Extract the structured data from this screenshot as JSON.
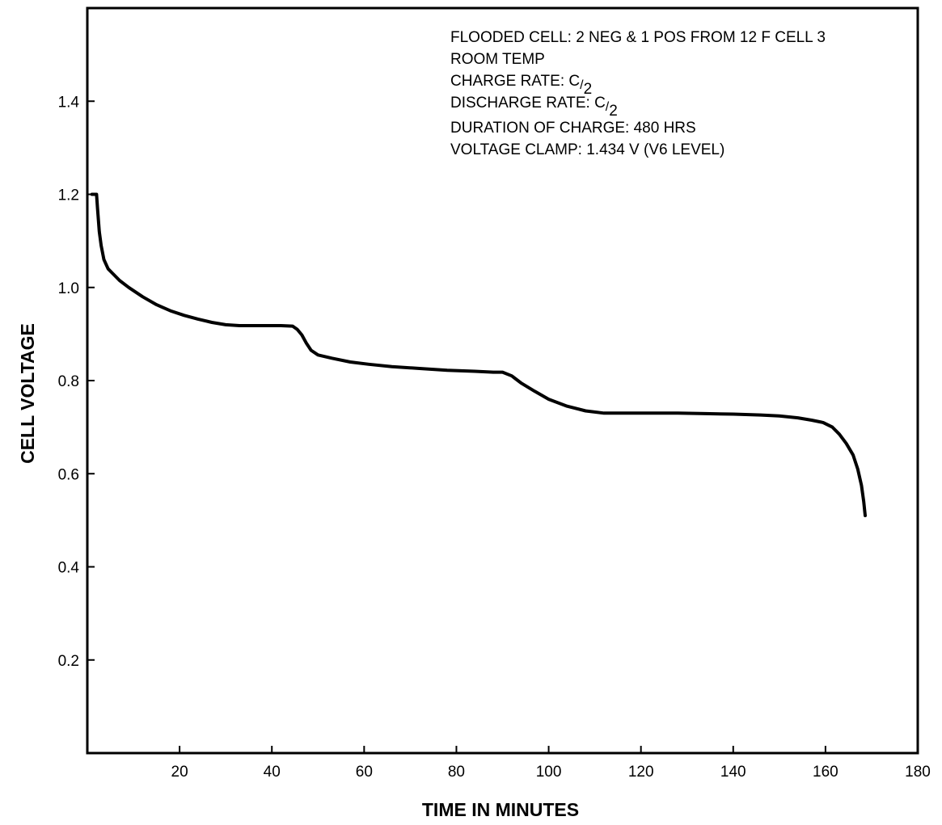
{
  "chart_data": {
    "type": "line",
    "title": "",
    "xlabel": "TIME IN MINUTES",
    "ylabel": "CELL VOLTAGE",
    "xlim": [
      0,
      180
    ],
    "ylim": [
      0,
      1.6
    ],
    "x_ticks": [
      20,
      40,
      60,
      80,
      100,
      120,
      140,
      160,
      180
    ],
    "y_ticks": [
      0.2,
      0.4,
      0.6,
      0.8,
      1.0,
      1.2,
      1.4
    ],
    "x_tick_labels": [
      "20",
      "40",
      "60",
      "80",
      "100",
      "120",
      "140",
      "160",
      "180"
    ],
    "y_tick_labels": [
      "0.2",
      "0.4",
      "0.6",
      "0.8",
      "1.0",
      "1.2",
      "1.4"
    ],
    "grid": false,
    "legend": "none",
    "line_color": "#000000",
    "annotations": {
      "line1": "FLOODED CELL: 2 NEG & 1 POS FROM 12 F CELL 3",
      "line2": "ROOM TEMP",
      "line3_prefix": "CHARGE RATE: ",
      "line3_c": "C",
      "line3_slash": "/",
      "line3_sub": "2",
      "line4_prefix": "DISCHARGE RATE: ",
      "line4_c": "C",
      "line4_slash": "/",
      "line4_sub": "2",
      "line5": "DURATION OF CHARGE: 480 HRS",
      "line6": "VOLTAGE CLAMP: 1.434 V (V6 LEVEL)"
    },
    "series": [
      {
        "x": [
          1.0,
          2.0,
          2.2,
          2.6,
          3.0,
          3.6,
          4.5,
          5.5,
          7.0,
          9.0,
          12.0,
          15.0,
          18.0,
          21.0,
          24.0,
          27.0,
          30.0,
          33.0,
          36.0,
          39.0,
          42.0,
          44.5,
          45.5,
          46.5,
          47.5,
          48.5,
          50.0,
          53.0,
          57.0,
          61.0,
          66.0,
          72.0,
          78.0,
          84.0,
          88.0,
          90.0,
          92.0,
          94.0,
          97.0,
          100.0,
          104.0,
          108.0,
          112.0,
          116.0,
          122.0,
          128.0,
          134.0,
          140.0,
          146.0,
          150.0,
          154.0,
          157.0,
          159.5,
          161.5,
          163.0,
          164.5,
          166.0,
          167.0,
          167.8,
          168.3,
          168.6
        ],
        "y": [
          1.2,
          1.2,
          1.17,
          1.12,
          1.09,
          1.06,
          1.04,
          1.03,
          1.015,
          1.0,
          0.98,
          0.963,
          0.95,
          0.94,
          0.932,
          0.925,
          0.92,
          0.918,
          0.918,
          0.918,
          0.918,
          0.917,
          0.91,
          0.898,
          0.88,
          0.865,
          0.855,
          0.848,
          0.84,
          0.835,
          0.83,
          0.826,
          0.822,
          0.82,
          0.818,
          0.818,
          0.81,
          0.795,
          0.777,
          0.76,
          0.745,
          0.735,
          0.73,
          0.73,
          0.73,
          0.73,
          0.729,
          0.728,
          0.726,
          0.724,
          0.72,
          0.715,
          0.71,
          0.7,
          0.685,
          0.665,
          0.64,
          0.61,
          0.575,
          0.54,
          0.51
        ]
      }
    ]
  }
}
